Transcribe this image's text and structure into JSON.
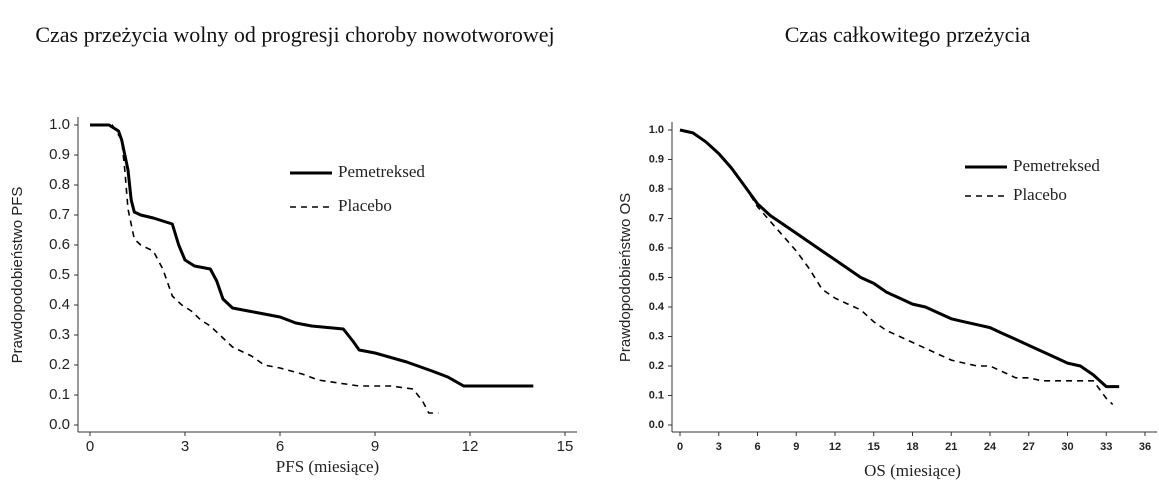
{
  "chart_data": [
    {
      "type": "line",
      "title": "Czas przeżycia wolny od progresji choroby nowotworowej",
      "x_label": "PFS (miesiące)",
      "y_label": "Prawdopodobieństwo  PFS",
      "xlim": [
        0,
        15
      ],
      "xticks": [
        0,
        3,
        6,
        9,
        12,
        15
      ],
      "ylim": [
        0,
        1
      ],
      "yticks": [
        {
          "value": 0,
          "label": "0.0"
        },
        0.1,
        0.2,
        0.3,
        0.4,
        0.5,
        0.6,
        0.7,
        0.8,
        0.9,
        {
          "value": 1,
          "label": "1.0"
        }
      ],
      "legend": "upper right",
      "series": [
        {
          "name": "Pemetreksed",
          "color": "#000000",
          "line_style": "solid",
          "x": [
            0,
            0.6,
            0.9,
            1.0,
            1.2,
            1.3,
            1.4,
            1.6,
            2.0,
            2.6,
            2.8,
            3.0,
            3.3,
            3.8,
            4.0,
            4.2,
            4.5,
            5.0,
            5.5,
            6.0,
            6.5,
            7.0,
            8.0,
            8.3,
            8.5,
            9.0,
            10.0,
            10.8,
            11.3,
            11.8,
            14.0
          ],
          "values": [
            1.0,
            1.0,
            0.98,
            0.95,
            0.85,
            0.75,
            0.71,
            0.7,
            0.69,
            0.67,
            0.6,
            0.55,
            0.53,
            0.52,
            0.48,
            0.42,
            0.39,
            0.38,
            0.37,
            0.36,
            0.34,
            0.33,
            0.32,
            0.28,
            0.25,
            0.24,
            0.21,
            0.18,
            0.16,
            0.13,
            0.13
          ]
        },
        {
          "name": "Placebo",
          "color": "#000000",
          "line_style": "dashed",
          "x": [
            0,
            0.7,
            1.0,
            1.1,
            1.2,
            1.4,
            1.6,
            2.0,
            2.3,
            2.6,
            2.9,
            3.2,
            3.5,
            3.8,
            4.1,
            4.5,
            5.1,
            5.5,
            6.0,
            6.7,
            7.2,
            8.5,
            9.5,
            10.2,
            10.5,
            10.7,
            11.0
          ],
          "values": [
            1.0,
            1.0,
            0.95,
            0.85,
            0.72,
            0.62,
            0.6,
            0.58,
            0.52,
            0.43,
            0.4,
            0.38,
            0.35,
            0.33,
            0.3,
            0.26,
            0.23,
            0.2,
            0.19,
            0.17,
            0.15,
            0.13,
            0.13,
            0.12,
            0.08,
            0.04,
            0.04
          ]
        }
      ]
    },
    {
      "type": "line",
      "title": "Czas całkowitego przeżycia",
      "x_label": "OS (miesiące)",
      "y_label": "Prawdopodobieństwo  OS",
      "xlim": [
        0,
        36
      ],
      "xticks": [
        0,
        3,
        6,
        9,
        12,
        15,
        18,
        21,
        24,
        27,
        30,
        33,
        36
      ],
      "ylim": [
        0,
        1
      ],
      "yticks": [
        {
          "value": 0,
          "label": "0.0"
        },
        0.1,
        0.2,
        0.3,
        0.4,
        0.5,
        0.6,
        0.7,
        0.8,
        0.9,
        {
          "value": 1,
          "label": "1.0"
        }
      ],
      "legend": "upper right",
      "series": [
        {
          "name": "Pemetreksed",
          "color": "#000000",
          "line_style": "solid",
          "x": [
            0,
            1,
            2,
            3,
            4,
            5,
            6,
            7,
            8,
            9,
            10,
            11,
            12,
            13,
            14,
            15,
            16,
            17,
            18,
            19,
            20,
            21,
            22,
            23,
            24,
            25,
            26,
            27,
            28,
            29,
            30,
            31,
            32,
            33,
            34
          ],
          "values": [
            1.0,
            0.99,
            0.96,
            0.92,
            0.87,
            0.81,
            0.75,
            0.71,
            0.68,
            0.65,
            0.62,
            0.59,
            0.56,
            0.53,
            0.5,
            0.48,
            0.45,
            0.43,
            0.41,
            0.4,
            0.38,
            0.36,
            0.35,
            0.34,
            0.33,
            0.31,
            0.29,
            0.27,
            0.25,
            0.23,
            0.21,
            0.2,
            0.17,
            0.13,
            0.13
          ]
        },
        {
          "name": "Placebo",
          "color": "#000000",
          "line_style": "dashed",
          "x": [
            0,
            1,
            2,
            3,
            4,
            5,
            6,
            7,
            8,
            9,
            10,
            11,
            12,
            13,
            14,
            15,
            16,
            17,
            18,
            19,
            20,
            21,
            22,
            23,
            24,
            25,
            26,
            27,
            28,
            29,
            30,
            31,
            32,
            33,
            33.5
          ],
          "values": [
            1.0,
            0.99,
            0.96,
            0.92,
            0.87,
            0.81,
            0.74,
            0.69,
            0.64,
            0.59,
            0.53,
            0.46,
            0.43,
            0.41,
            0.39,
            0.35,
            0.32,
            0.3,
            0.28,
            0.26,
            0.24,
            0.22,
            0.21,
            0.2,
            0.2,
            0.18,
            0.16,
            0.16,
            0.15,
            0.15,
            0.15,
            0.15,
            0.15,
            0.09,
            0.07
          ]
        }
      ]
    }
  ]
}
